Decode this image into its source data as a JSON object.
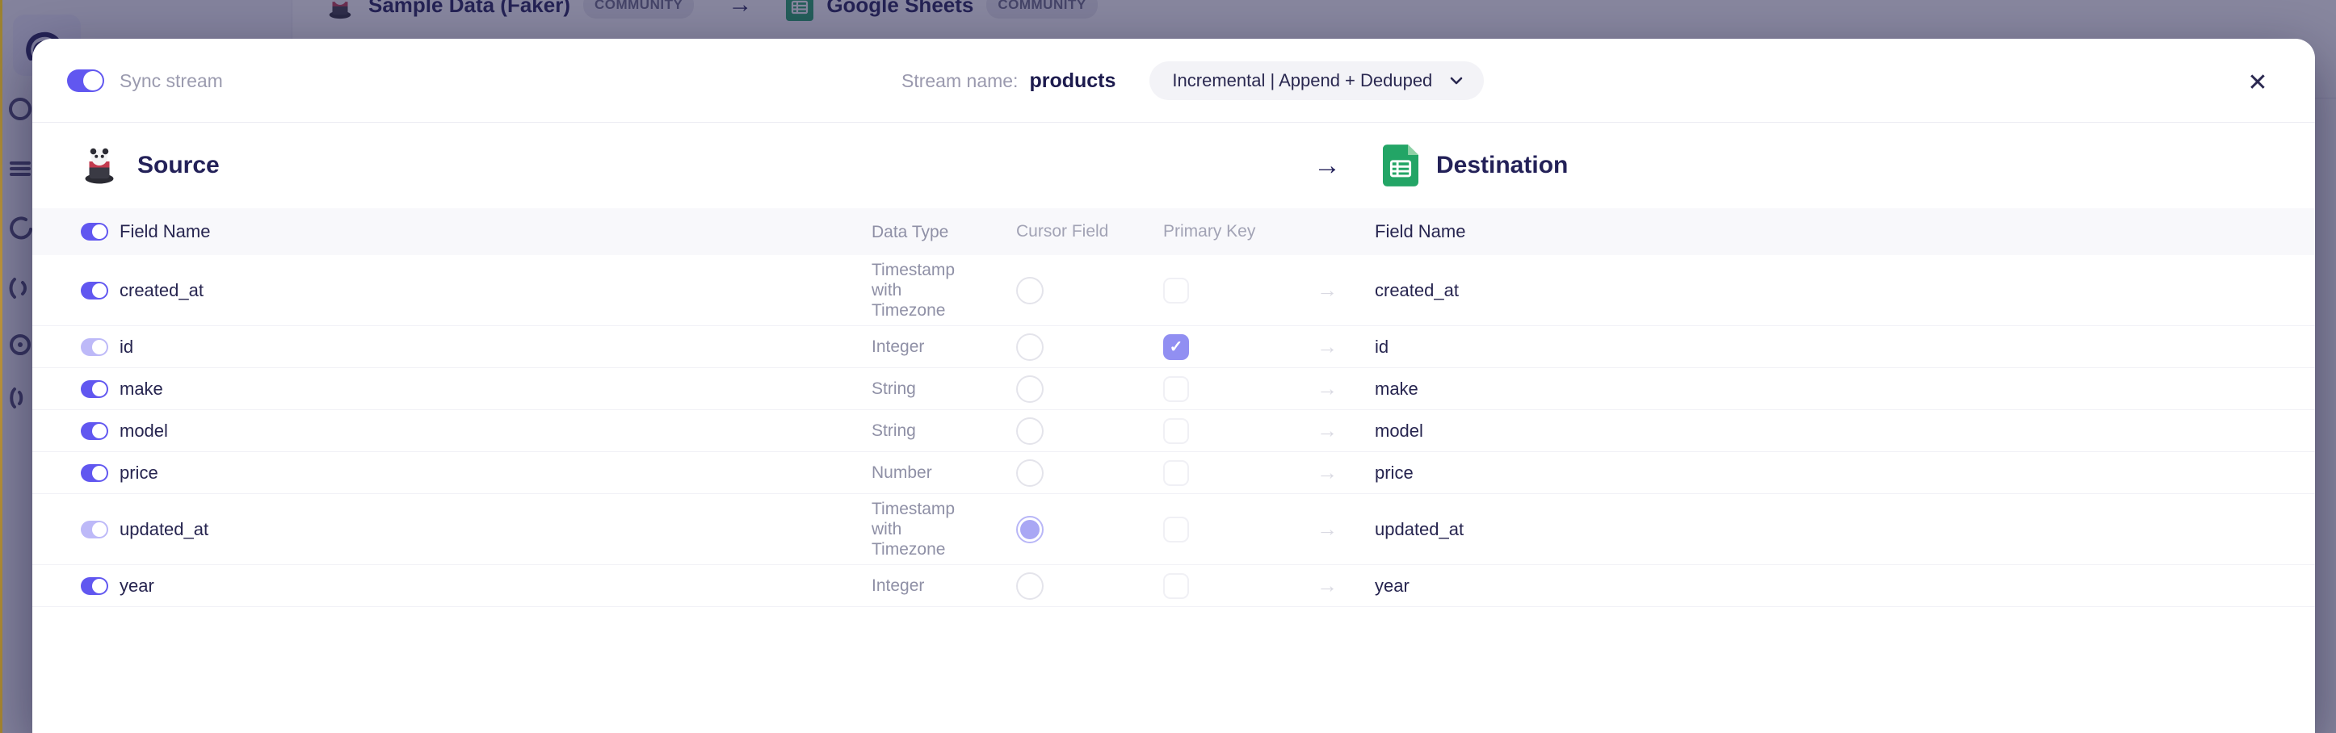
{
  "background": {
    "breadcrumb": {
      "source_label": "Sample Data (Faker)",
      "source_badge": "COMMUNITY",
      "arrow": "→",
      "destination_label": "Google Sheets",
      "destination_badge": "COMMUNITY"
    }
  },
  "modal": {
    "header": {
      "sync_toggle_label": "Sync stream",
      "sync_toggle_state": "on",
      "stream_name_label": "Stream name:",
      "stream_name": "products",
      "sync_mode": "Incremental | Append + Deduped",
      "close_glyph": "✕"
    },
    "source_heading": "Source",
    "destination_heading": "Destination",
    "endpoint_arrow": "→",
    "table": {
      "headers": {
        "field_name": "Field Name",
        "data_type": "Data Type",
        "cursor_field": "Cursor Field",
        "primary_key": "Primary Key",
        "dest_field_name": "Field Name"
      },
      "row_arrow": "→",
      "check_glyph": "✓",
      "rows": [
        {
          "name": "created_at",
          "type": "Timestamp with Timezone",
          "dest": "created_at",
          "toggle": "on",
          "cursor": "off",
          "pk": "off"
        },
        {
          "name": "id",
          "type": "Integer",
          "dest": "id",
          "toggle": "on-muted",
          "cursor": "off",
          "pk": "checked"
        },
        {
          "name": "make",
          "type": "String",
          "dest": "make",
          "toggle": "on",
          "cursor": "off",
          "pk": "off"
        },
        {
          "name": "model",
          "type": "String",
          "dest": "model",
          "toggle": "on",
          "cursor": "off",
          "pk": "off"
        },
        {
          "name": "price",
          "type": "Number",
          "dest": "price",
          "toggle": "on",
          "cursor": "off",
          "pk": "off"
        },
        {
          "name": "updated_at",
          "type": "Timestamp with Timezone",
          "dest": "updated_at",
          "toggle": "on-muted",
          "cursor": "selected",
          "pk": "off"
        },
        {
          "name": "year",
          "type": "Integer",
          "dest": "year",
          "toggle": "on",
          "cursor": "off",
          "pk": "off"
        }
      ]
    }
  },
  "colors": {
    "accent_indigo": "#6157F0",
    "accent_muted": "#BDB9F8",
    "checkbox_checked": "#918FF2",
    "radio_selected": "#A9A7F4",
    "overlay": "rgba(38,36,80,0.55)",
    "sheets_green": "#23A566",
    "header_bg": "#F8F8FB"
  }
}
